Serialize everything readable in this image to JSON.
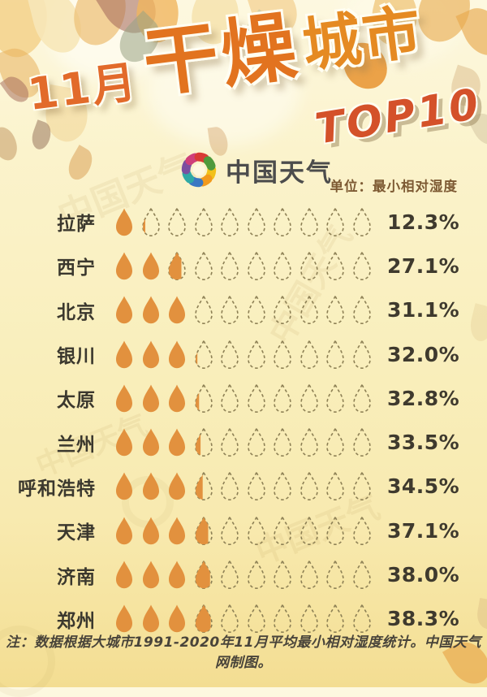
{
  "title": {
    "month": "11月",
    "dry": "干燥",
    "city": "城市",
    "badge": "TOP10",
    "full": "11月干燥城市TOP10"
  },
  "brand": {
    "name": "中国天气",
    "logo_colors": [
      "#f2c119",
      "#f29a1c",
      "#3a77c2",
      "#2fa9a5",
      "#7b4fa0",
      "#cf3f7a",
      "#d93a35",
      "#4f9a3c"
    ]
  },
  "unit_label": "单位：最小相对湿度",
  "watermark_text": "中国天气",
  "footer_note": "注：数据根据大城市1991-2020年11月平均最小相对湿度统计。中国天气网制图。",
  "chart_data": {
    "type": "bar",
    "subtype": "pictogram-droplets",
    "title": "11月干燥城市TOP10",
    "unit": "最小相对湿度",
    "max_drops": 10,
    "percent_per_drop": 10,
    "categories": [
      "拉萨",
      "西宁",
      "北京",
      "银川",
      "太原",
      "兰州",
      "呼和浩特",
      "天津",
      "济南",
      "郑州"
    ],
    "values": [
      12.3,
      27.1,
      31.1,
      32.0,
      32.8,
      33.5,
      34.5,
      37.1,
      38.0,
      38.3
    ],
    "value_labels": [
      "12.3%",
      "27.1%",
      "31.1%",
      "32.0%",
      "32.8%",
      "33.5%",
      "34.5%",
      "37.1%",
      "38.0%",
      "38.3%"
    ],
    "colors": {
      "drop_fill": "#e2913e",
      "drop_outline": "#8d8055",
      "label_text": "#3b382e",
      "value_text": "#3f3a2e"
    }
  }
}
